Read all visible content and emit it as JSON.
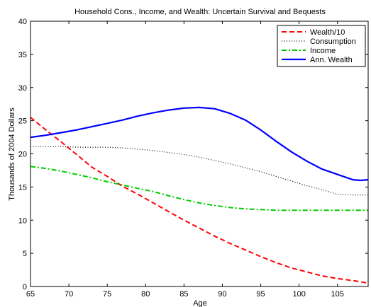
{
  "chart_data": {
    "type": "line",
    "title": "Household Cons., Income, and Wealth: Uncertain Survival and Bequests",
    "xlabel": "Age",
    "ylabel": "Thousands of 2004 Dollars",
    "xlim": [
      65,
      109
    ],
    "ylim": [
      0,
      40
    ],
    "xticks": [
      65,
      70,
      75,
      80,
      85,
      90,
      95,
      100,
      105
    ],
    "yticks": [
      0,
      5,
      10,
      15,
      20,
      25,
      30,
      35,
      40
    ],
    "grid": false,
    "legend_position": "top-right",
    "x": [
      65,
      67,
      69,
      71,
      73,
      75,
      77,
      79,
      81,
      83,
      85,
      87,
      89,
      91,
      93,
      95,
      97,
      99,
      101,
      103,
      105,
      107,
      108,
      109
    ],
    "series": [
      {
        "name": "Wealth/10",
        "color": "#ff0000",
        "dash": "dashed",
        "values": [
          25.5,
          23.6,
          21.8,
          19.9,
          18.0,
          16.6,
          15.1,
          13.9,
          12.6,
          11.3,
          10.0,
          8.8,
          7.6,
          6.5,
          5.5,
          4.5,
          3.6,
          2.8,
          2.2,
          1.6,
          1.2,
          0.9,
          0.7,
          0.5
        ]
      },
      {
        "name": "Consumption",
        "color": "#000000",
        "dash": "dotted",
        "values": [
          21.1,
          21.1,
          21.1,
          21.0,
          21.0,
          21.0,
          20.9,
          20.7,
          20.5,
          20.2,
          19.9,
          19.5,
          19.0,
          18.5,
          17.9,
          17.3,
          16.6,
          15.9,
          15.2,
          14.6,
          13.9,
          13.8,
          13.8,
          13.8
        ]
      },
      {
        "name": "Income",
        "color": "#00cc00",
        "dash": "dashdot",
        "values": [
          18.1,
          17.8,
          17.4,
          16.9,
          16.4,
          15.8,
          15.3,
          14.8,
          14.3,
          13.7,
          13.1,
          12.6,
          12.2,
          11.9,
          11.7,
          11.6,
          11.5,
          11.5,
          11.5,
          11.5,
          11.5,
          11.5,
          11.5,
          11.5
        ]
      },
      {
        "name": "Ann. Wealth",
        "color": "#0000ff",
        "dash": "solid",
        "values": [
          22.5,
          22.8,
          23.2,
          23.6,
          24.1,
          24.6,
          25.1,
          25.7,
          26.2,
          26.6,
          26.9,
          27.0,
          26.8,
          26.1,
          25.1,
          23.6,
          21.9,
          20.3,
          18.9,
          17.7,
          16.9,
          16.1,
          16.0,
          16.1
        ]
      }
    ]
  }
}
